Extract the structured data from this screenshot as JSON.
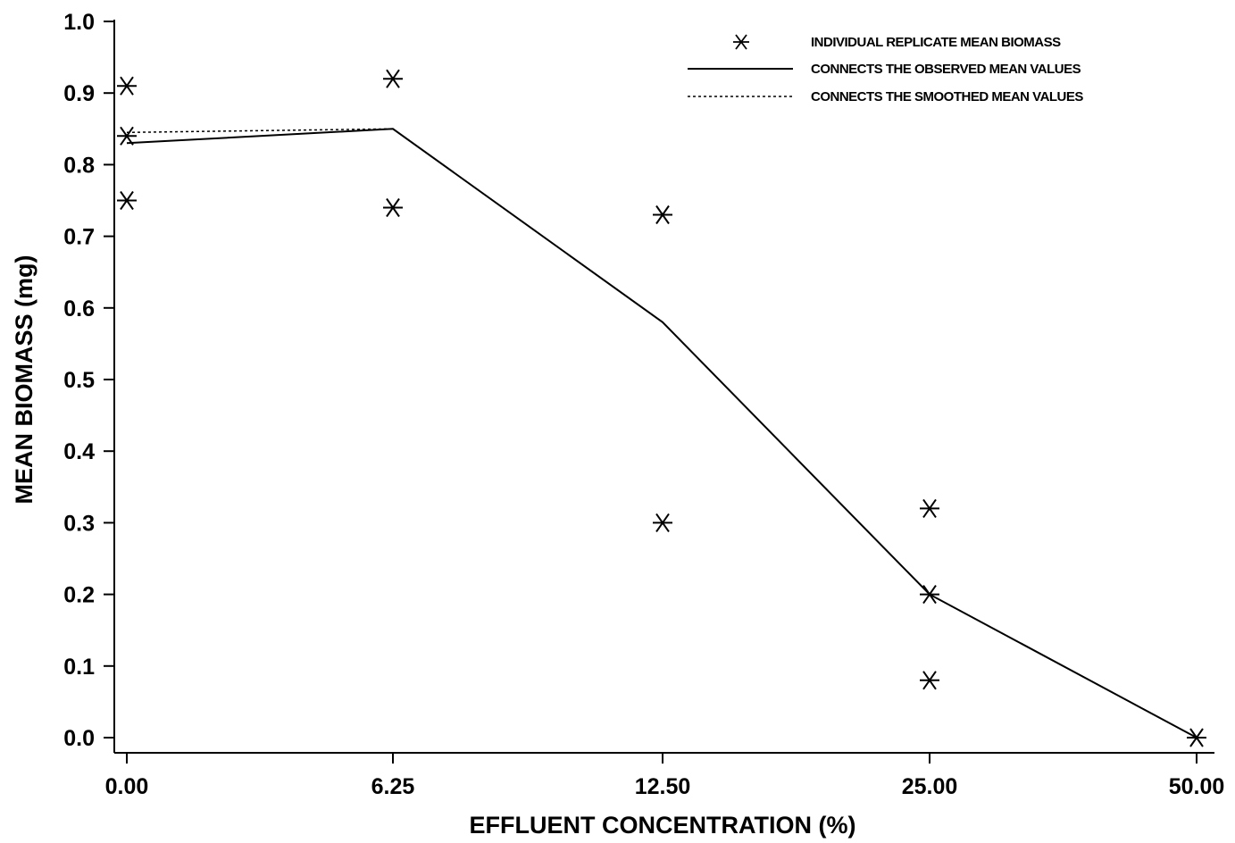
{
  "chart_data": {
    "type": "line",
    "xlabel": "EFFLUENT CONCENTRATION (%)",
    "ylabel": "MEAN BIOMASS (mg)",
    "x_categories": [
      "0.00",
      "6.25",
      "12.50",
      "25.00",
      "50.00"
    ],
    "y_ticks": [
      "0.0",
      "0.1",
      "0.2",
      "0.3",
      "0.4",
      "0.5",
      "0.6",
      "0.7",
      "0.8",
      "0.9",
      "1.0"
    ],
    "ylim": [
      0,
      1.0
    ],
    "x_scale": "categorical (equally spaced)",
    "grid": false,
    "legend_position": "top-right",
    "legend": [
      {
        "label": "INDIVIDUAL REPLICATE MEAN BIOMASS",
        "marker": "asterisk"
      },
      {
        "label": "CONNECTS THE OBSERVED MEAN VALUES",
        "line": "solid"
      },
      {
        "label": "CONNECTS THE SMOOTHED MEAN VALUES",
        "line": "dotted"
      }
    ],
    "replicates": [
      {
        "x": "0.00",
        "y": 0.91
      },
      {
        "x": "0.00",
        "y": 0.84
      },
      {
        "x": "0.00",
        "y": 0.75
      },
      {
        "x": "6.25",
        "y": 0.92
      },
      {
        "x": "6.25",
        "y": 0.74
      },
      {
        "x": "12.50",
        "y": 0.73
      },
      {
        "x": "12.50",
        "y": 0.3
      },
      {
        "x": "25.00",
        "y": 0.32
      },
      {
        "x": "25.00",
        "y": 0.2
      },
      {
        "x": "25.00",
        "y": 0.08
      },
      {
        "x": "50.00",
        "y": 0.0
      }
    ],
    "series": [
      {
        "name": "CONNECTS THE OBSERVED MEAN VALUES",
        "style": "solid",
        "values": [
          0.83,
          0.85,
          0.58,
          0.2,
          0.0
        ]
      },
      {
        "name": "CONNECTS THE SMOOTHED MEAN VALUES",
        "style": "dotted",
        "values": [
          0.845,
          0.85,
          0.58,
          0.2,
          0.0
        ]
      }
    ]
  }
}
